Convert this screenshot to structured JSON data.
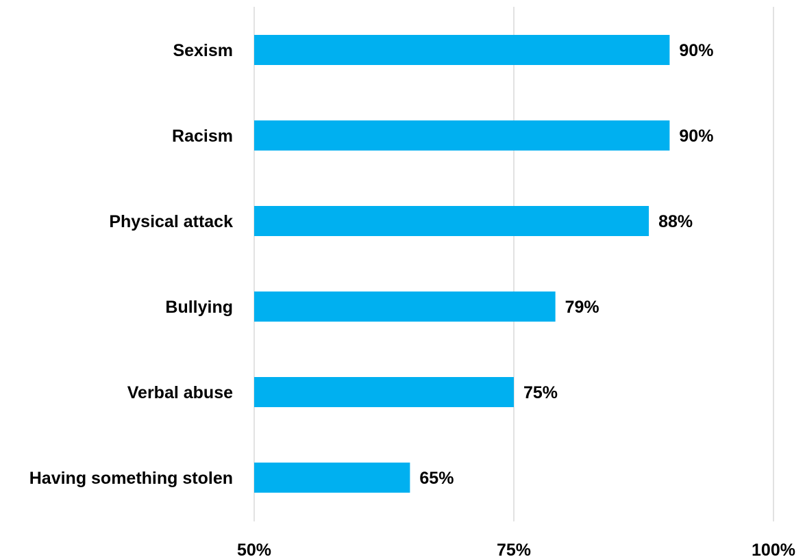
{
  "chart_data": {
    "type": "bar",
    "orientation": "horizontal",
    "categories": [
      "Sexism",
      "Racism",
      "Physical attack",
      "Bullying",
      "Verbal abuse",
      "Having something stolen"
    ],
    "values": [
      90,
      90,
      88,
      79,
      75,
      65
    ],
    "value_labels": [
      "90%",
      "90%",
      "88%",
      "79%",
      "75%",
      "65%"
    ],
    "xlim": [
      50,
      100
    ],
    "xticks": [
      50,
      75,
      100
    ],
    "xtick_labels": [
      "50%",
      "75%",
      "100%"
    ],
    "grid": true,
    "legend": "none",
    "title": "",
    "xlabel": "",
    "ylabel": "",
    "bar_color": "#00b0f0",
    "grid_color": "#d9d9d9"
  }
}
